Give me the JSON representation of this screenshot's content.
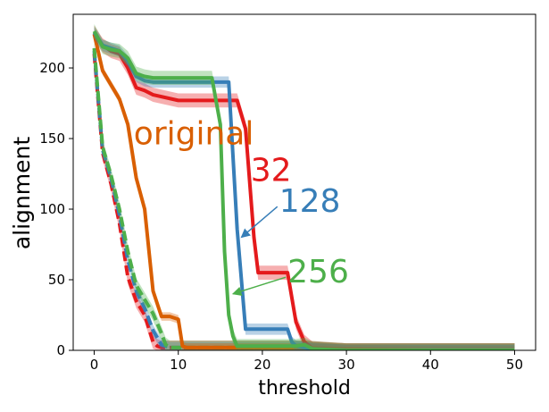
{
  "chart_data": {
    "type": "line",
    "xlabel": "threshold",
    "ylabel": "alignment",
    "xlim": [
      -2.5,
      52.5
    ],
    "ylim": [
      0,
      238
    ],
    "xticks": [
      0,
      10,
      20,
      30,
      40,
      50
    ],
    "yticks": [
      0,
      50,
      100,
      150,
      200
    ],
    "grid": false,
    "annotations": [
      {
        "text": "original",
        "color": "#d95f02",
        "x": 4.7,
        "y": 146
      },
      {
        "text": "32",
        "color": "#e41a1c",
        "x": 18.6,
        "y": 120
      },
      {
        "text": "128",
        "color": "#377eb8",
        "x": 22.0,
        "y": 98,
        "arrow_to": [
          17.5,
          80
        ]
      },
      {
        "text": "256",
        "color": "#4daf4a",
        "x": 23.0,
        "y": 48,
        "arrow_to": [
          16.5,
          40
        ]
      }
    ],
    "series": [
      {
        "name": "original",
        "color": "#d95f02",
        "style": "solid",
        "x": [
          0,
          1,
          2,
          3,
          4,
          5,
          6,
          7,
          8,
          9,
          10,
          10.5,
          11,
          15,
          20,
          25,
          30,
          40,
          50
        ],
        "y": [
          224,
          198,
          188,
          178,
          160,
          122,
          100,
          42,
          24,
          24,
          22,
          3,
          2,
          2,
          2,
          2,
          1,
          0,
          0
        ],
        "band": 3
      },
      {
        "name": "32",
        "color": "#e41a1c",
        "style": "solid",
        "x": [
          0,
          1,
          2,
          3,
          4,
          5,
          6,
          7,
          10,
          12,
          15,
          17,
          18,
          19,
          19.5,
          20,
          21,
          22,
          23,
          24,
          25,
          26,
          30,
          50
        ],
        "y": [
          225,
          216,
          212,
          210,
          200,
          186,
          184,
          181,
          177,
          177,
          177,
          177,
          157,
          80,
          55,
          55,
          55,
          55,
          55,
          20,
          6,
          1,
          0,
          0
        ],
        "band": 5
      },
      {
        "name": "128",
        "color": "#377eb8",
        "style": "solid",
        "x": [
          0,
          1,
          2,
          3,
          4,
          5,
          6,
          7,
          10,
          12,
          14,
          15,
          16,
          17,
          18,
          20,
          22,
          23,
          23.5,
          24,
          25,
          26,
          30,
          50
        ],
        "y": [
          225,
          216,
          214,
          212,
          205,
          194,
          191,
          190,
          190,
          190,
          190,
          190,
          190,
          86,
          15,
          15,
          15,
          15,
          6,
          3,
          2,
          1,
          0,
          0
        ],
        "band": 4
      },
      {
        "name": "256",
        "color": "#4daf4a",
        "style": "solid",
        "x": [
          0,
          1,
          2,
          3,
          4,
          5,
          6,
          7,
          10,
          12,
          14,
          15,
          15.5,
          16,
          16.5,
          17,
          20,
          23,
          24,
          25,
          26,
          30,
          50
        ],
        "y": [
          226,
          215,
          213,
          212,
          207,
          196,
          194,
          193,
          193,
          193,
          193,
          160,
          70,
          25,
          10,
          3,
          3,
          3,
          3,
          4,
          1,
          0,
          0
        ],
        "band": 5
      },
      {
        "name": "32 (dashed)",
        "color": "#e41a1c",
        "style": "dashed",
        "x": [
          0,
          1,
          2,
          3,
          4,
          5,
          6,
          7,
          7.5,
          8,
          10,
          15,
          20,
          25,
          30,
          50
        ],
        "y": [
          210,
          140,
          118,
          90,
          52,
          35,
          25,
          6,
          3,
          2,
          2,
          2,
          2,
          2,
          0,
          0
        ],
        "band": 5
      },
      {
        "name": "128 (dashed)",
        "color": "#377eb8",
        "style": "dashed",
        "x": [
          0,
          1,
          2,
          3,
          4,
          5,
          6,
          7,
          8,
          9,
          10,
          15,
          20,
          25,
          30,
          50
        ],
        "y": [
          212,
          142,
          122,
          96,
          64,
          42,
          30,
          14,
          4,
          2,
          2,
          2,
          2,
          2,
          0,
          0
        ],
        "band": 4
      },
      {
        "name": "256 (dashed)",
        "color": "#4daf4a",
        "style": "dashed",
        "x": [
          0,
          1,
          2,
          3,
          4,
          5,
          6,
          7,
          8,
          8.5,
          9,
          10,
          15,
          20,
          25,
          30,
          50
        ],
        "y": [
          214,
          144,
          124,
          100,
          70,
          46,
          36,
          26,
          12,
          4,
          2,
          2,
          2,
          2,
          2,
          0,
          0
        ],
        "band": 5
      }
    ]
  }
}
